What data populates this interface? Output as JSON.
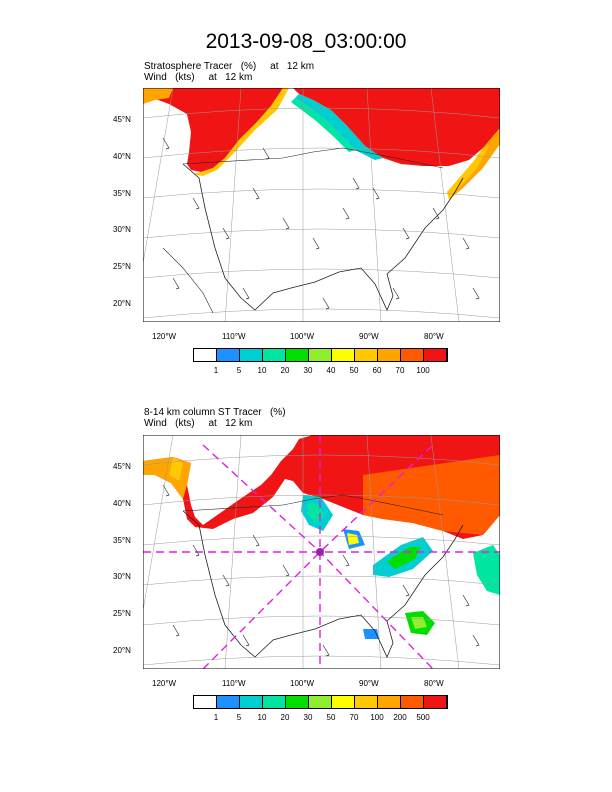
{
  "title": "2013-09-08_03:00:00",
  "panels": [
    {
      "line1": "Stratosphere Tracer   (%)     at   12 km",
      "line2": "Wind   (kts)     at   12 km",
      "lat_labels": [
        "45°N",
        "40°N",
        "35°N",
        "30°N",
        "25°N",
        "20°N"
      ],
      "lon_labels": [
        "120°W",
        "110°W",
        "100°W",
        "90°W",
        "80°W"
      ],
      "colorbar_labels": [
        "1",
        "5",
        "10",
        "20",
        "30",
        "40",
        "50",
        "60",
        "70",
        "100"
      ],
      "colorbar_colors": [
        "#ffffff",
        "#1e90ff",
        "#00ced1",
        "#00e5a0",
        "#00dd00",
        "#90ee30",
        "#ffff00",
        "#ffc800",
        "#ffa500",
        "#ff5a00",
        "#f01414"
      ]
    },
    {
      "line1": "8-14 km column ST Tracer   (%)",
      "line2": "Wind   (kts)     at   12 km",
      "lat_labels": [
        "45°N",
        "40°N",
        "35°N",
        "30°N",
        "25°N",
        "20°N"
      ],
      "lon_labels": [
        "120°W",
        "110°W",
        "100°W",
        "90°W",
        "80°W"
      ],
      "colorbar_labels": [
        "1",
        "5",
        "10",
        "20",
        "30",
        "50",
        "70",
        "100",
        "200",
        "500"
      ],
      "colorbar_colors": [
        "#ffffff",
        "#1e90ff",
        "#00ced1",
        "#00e5a0",
        "#00dd00",
        "#90ee30",
        "#ffff00",
        "#ffc800",
        "#ffa500",
        "#ff5a00",
        "#f01414"
      ]
    }
  ]
}
